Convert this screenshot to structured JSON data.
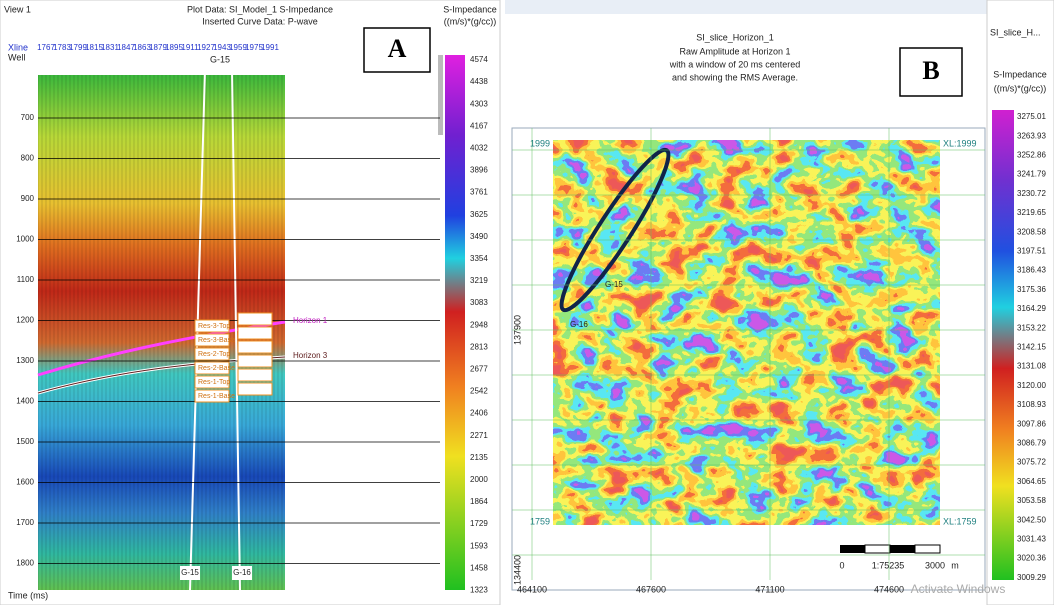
{
  "panel_a": {
    "view": "View 1",
    "plot_data": "Plot Data: SI_Model_1 S-Impedance",
    "inserted": "Inserted Curve Data: P-wave",
    "xline_label": "Xline",
    "well_label": "Well",
    "xlines": [
      "1767",
      "1783",
      "1799",
      "1815",
      "1831",
      "1847",
      "1863",
      "1879",
      "1895",
      "1911",
      "1927",
      "1943",
      "1959",
      "1975",
      "1991"
    ],
    "times": [
      "700",
      "800",
      "900",
      "1000",
      "1100",
      "1200",
      "1300",
      "1400",
      "1500",
      "1600",
      "1700",
      "1800"
    ],
    "time_axis": "Time (ms)",
    "well_top": "G-15",
    "wells": [
      "G-15",
      "G-16"
    ],
    "horizons": [
      "Horizon 1",
      "Horizon 3"
    ],
    "reservoirs": [
      "Res-3-Top",
      "Res-3-Base",
      "Res-2-Top",
      "Res-2-Base",
      "Res-1-Top",
      "Res-1-Base"
    ],
    "colorbar_title": "S-Impedance",
    "colorbar_unit": "((m/s)*(g/cc))",
    "colorbar": [
      "4574",
      "4438",
      "4303",
      "4167",
      "4032",
      "3896",
      "3761",
      "3625",
      "3490",
      "3354",
      "3219",
      "3083",
      "2948",
      "2813",
      "2677",
      "2542",
      "2406",
      "2271",
      "2135",
      "2000",
      "1864",
      "1729",
      "1593",
      "1458",
      "1323"
    ],
    "marker": "A"
  },
  "panel_b": {
    "title": "SI_slice_Horizon_1",
    "subtitle": [
      "Raw Amplitude at Horizon 1",
      "with a window of 20 ms centered",
      "and showing the RMS Average."
    ],
    "tab": "SI_slice_H...",
    "colorbar_title": "S-Impedance",
    "colorbar_unit": "((m/s)*(g/cc))",
    "colorbar": [
      "3275.01",
      "3263.93",
      "3252.86",
      "3241.79",
      "3230.72",
      "3219.65",
      "3208.58",
      "3197.51",
      "3186.43",
      "3175.36",
      "3164.29",
      "3153.22",
      "3142.15",
      "3131.08",
      "3120.00",
      "3108.93",
      "3097.86",
      "3086.79",
      "3075.72",
      "3064.65",
      "3053.58",
      "3042.50",
      "3031.43",
      "3020.36",
      "3009.29"
    ],
    "xticks": [
      "464100",
      "467600",
      "471100",
      "474600"
    ],
    "yticks": [
      "137900",
      "134400"
    ],
    "corner_labels": [
      "1999",
      "XL:1999",
      "1759",
      "XL:1759"
    ],
    "wells": [
      "G-15",
      "G-16"
    ],
    "scale": [
      "0",
      "1:75235",
      "3000",
      "m"
    ],
    "marker": "B",
    "watermark": "Activate Windows"
  }
}
